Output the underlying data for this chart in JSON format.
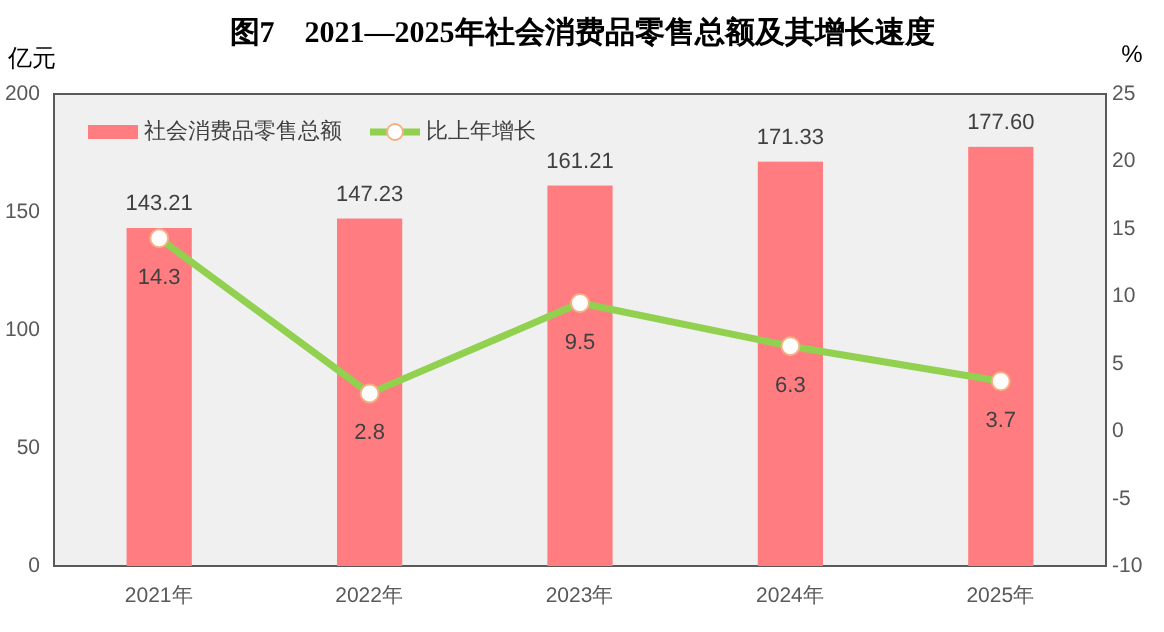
{
  "chart_data": {
    "type": "bar",
    "title": "图7　2021—2025年社会消费品零售总额及其增长速度",
    "ylabel": "亿元",
    "y2label": "%",
    "categories": [
      "2021年",
      "2022年",
      "2023年",
      "2024年",
      "2025年"
    ],
    "series": [
      {
        "name": "社会消费品零售总额",
        "color": "#ff7c80",
        "values": [
          143.21,
          147.23,
          161.21,
          171.33,
          177.6
        ],
        "value_labels": [
          "143.21",
          "147.23",
          "161.21",
          "171.33",
          "177.60"
        ]
      },
      {
        "name": "比上年增长",
        "type": "line",
        "axis": "y2",
        "color": "#92d050",
        "marker": "circle",
        "values": [
          14.3,
          2.8,
          9.5,
          6.3,
          3.7
        ]
      }
    ],
    "ylim": [
      0,
      200
    ],
    "yticks": [
      0,
      50,
      100,
      150,
      200
    ],
    "y2lim": [
      -10,
      25
    ],
    "y2ticks": [
      -10,
      -5,
      0,
      5,
      10,
      15,
      20,
      25
    ],
    "data_labels": true,
    "legend": "top left",
    "grid": false
  }
}
